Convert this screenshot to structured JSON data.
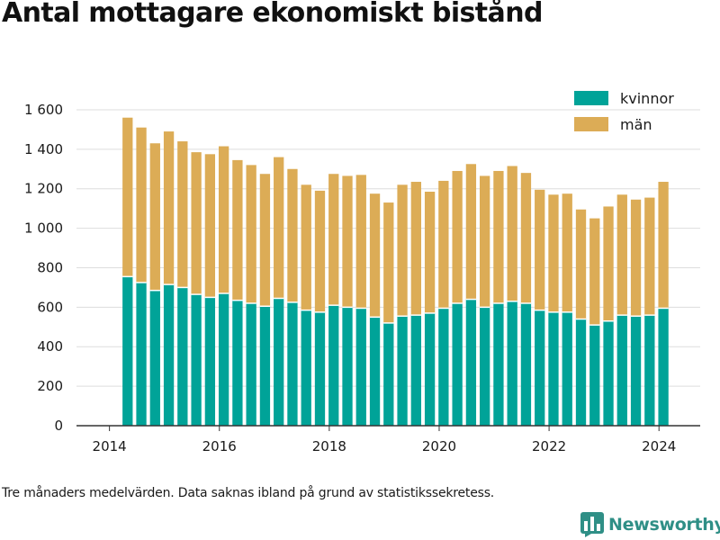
{
  "title": "Antal mottagare ekonomiskt bistånd",
  "footnote": "Tre månaders medelvärden. Data saknas ibland på grund av statistikssekretess.",
  "brand": "Newsworthy",
  "colors": {
    "kvinnor": "#00a398",
    "man": "#dcac56",
    "grid": "#dddddd",
    "axis": "#333333",
    "brand": "#2f8f86"
  },
  "chart_data": {
    "type": "bar",
    "stacked": true,
    "title": "Antal mottagare ekonomiskt bistånd",
    "xlabel": "",
    "ylabel": "",
    "ylim": [
      0,
      1700
    ],
    "xlim": [
      2013.4,
      2024.75
    ],
    "yticks": [
      0,
      200,
      400,
      600,
      800,
      1000,
      1200,
      1400,
      1600
    ],
    "ytick_labels": [
      "0",
      "200",
      "400",
      "600",
      "800",
      "1 000",
      "1 200",
      "1 400",
      "1 600"
    ],
    "xticks": [
      2014,
      2016,
      2018,
      2020,
      2022,
      2024
    ],
    "xtick_labels": [
      "2014",
      "2016",
      "2018",
      "2020",
      "2022",
      "2024"
    ],
    "grid": true,
    "legend_position": "top-right",
    "x": [
      2014.33,
      2014.58,
      2014.83,
      2015.08,
      2015.33,
      2015.58,
      2015.83,
      2016.08,
      2016.33,
      2016.58,
      2016.83,
      2017.08,
      2017.33,
      2017.58,
      2017.83,
      2018.08,
      2018.33,
      2018.58,
      2018.83,
      2019.08,
      2019.33,
      2019.58,
      2019.83,
      2020.08,
      2020.33,
      2020.58,
      2020.83,
      2021.08,
      2021.33,
      2021.58,
      2021.83,
      2022.08,
      2022.33,
      2022.58,
      2022.83,
      2023.08,
      2023.33,
      2023.58,
      2023.83,
      2024.08
    ],
    "series": [
      {
        "name": "kvinnor",
        "values": [
          755,
          725,
          685,
          715,
          700,
          665,
          650,
          670,
          635,
          620,
          605,
          645,
          625,
          585,
          575,
          610,
          600,
          595,
          550,
          520,
          555,
          560,
          570,
          595,
          620,
          640,
          600,
          620,
          630,
          620,
          585,
          575,
          575,
          540,
          510,
          530,
          560,
          555,
          560,
          595
        ]
      },
      {
        "name": "män",
        "values": [
          805,
          785,
          745,
          775,
          740,
          720,
          725,
          745,
          710,
          700,
          670,
          715,
          675,
          635,
          615,
          665,
          665,
          675,
          625,
          610,
          665,
          675,
          615,
          645,
          670,
          685,
          665,
          670,
          685,
          660,
          610,
          595,
          600,
          555,
          540,
          580,
          610,
          590,
          595,
          640
        ]
      }
    ]
  }
}
